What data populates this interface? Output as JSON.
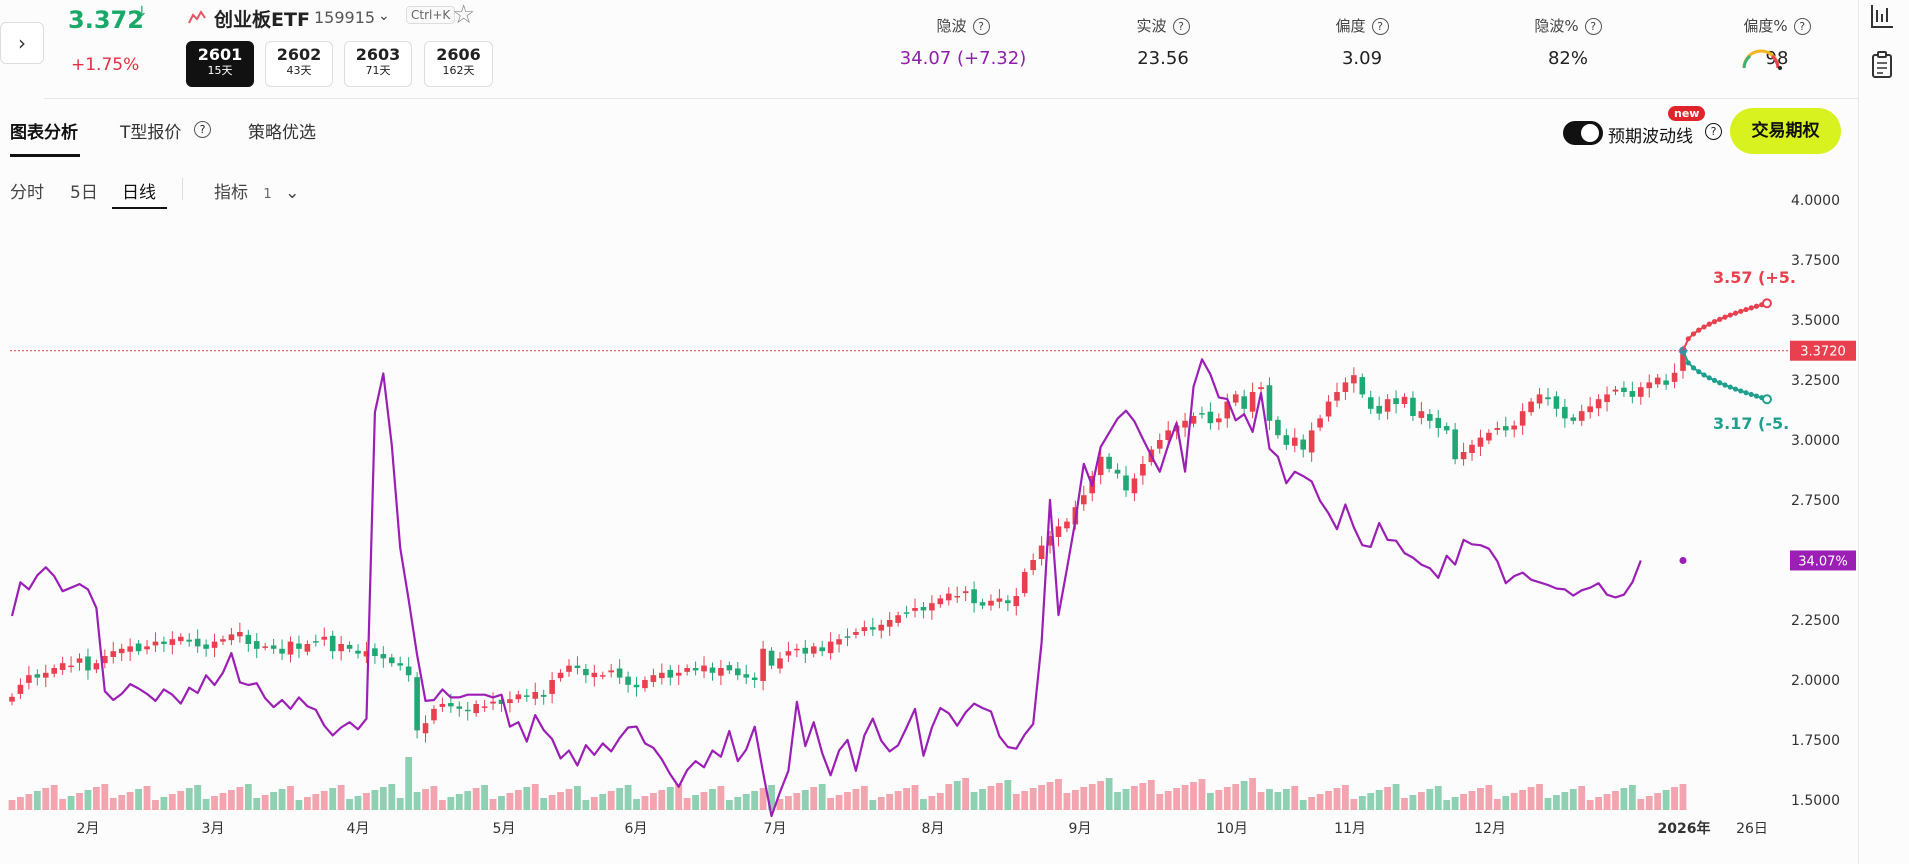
{
  "header": {
    "expand_icon": "chevron-right-icon",
    "price": "3.372",
    "price_arrow": "↓",
    "change": "+1.75%",
    "chart_icon": "chart-icon",
    "etf_name": "创业板ETF",
    "etf_code": "159915",
    "shortcut": "Ctrl+K",
    "favorite_icon": "star-icon",
    "expiries": [
      {
        "code": "2601",
        "days": "15天",
        "active": true
      },
      {
        "code": "2602",
        "days": "43天",
        "active": false
      },
      {
        "code": "2603",
        "days": "71天",
        "active": false
      },
      {
        "code": "2606",
        "days": "162天",
        "active": false
      }
    ],
    "stats": [
      {
        "label": "隐波",
        "value": "34.07 (+7.32)",
        "color": "#8e1fa8"
      },
      {
        "label": "实波",
        "value": "23.56",
        "color": "#222222"
      },
      {
        "label": "偏度",
        "value": "3.09",
        "color": "#222222"
      },
      {
        "label": "隐波%",
        "value": "82%",
        "color": "#222222"
      },
      {
        "label": "偏度%",
        "value": "98",
        "color": "#222222"
      }
    ]
  },
  "tabs": [
    "图表分析",
    "T型报价",
    "策略优选"
  ],
  "sub_tabs": [
    "分时",
    "5日",
    "日线"
  ],
  "indicator": {
    "label": "指标",
    "count": "1"
  },
  "toggle_label": "预期波动线",
  "new_badge": "new",
  "trade_button": "交易期权",
  "colors": {
    "up": "#e8404f",
    "down": "#1fa874",
    "iv_line": "#9b1fb5",
    "accent": "#d7f21e"
  },
  "chart_data": {
    "type": "candlestick",
    "x_ticks": [
      "2月",
      "3月",
      "4月",
      "5月",
      "6月",
      "7月",
      "8月",
      "9月",
      "10月",
      "11月",
      "12月",
      "2026年",
      "26日"
    ],
    "y_ticks": [
      "4.0000",
      "3.7500",
      "3.5000",
      "3.2500",
      "3.0000",
      "2.7500",
      "2.5000",
      "2.2500",
      "2.0000",
      "1.7500",
      "1.5000"
    ],
    "ylim": [
      1.5,
      4.0
    ],
    "last_price_label": "3.3720",
    "last_price": 3.372,
    "iv_label": "34.07%",
    "iv_last": 34.07,
    "projection_upper": {
      "label": "3.57 (+5.",
      "value": 3.57
    },
    "projection_lower": {
      "label": "3.17 (-5.",
      "value": 3.17
    },
    "price_series": [
      1.93,
      1.98,
      2.02,
      2.01,
      2.03,
      2.05,
      2.07,
      2.06,
      2.09,
      2.04,
      2.07,
      2.1,
      2.12,
      2.13,
      2.14,
      2.12,
      2.14,
      2.16,
      2.15,
      2.17,
      2.18,
      2.16,
      2.14,
      2.13,
      2.16,
      2.17,
      2.19,
      2.2,
      2.15,
      2.13,
      2.14,
      2.13,
      2.11,
      2.16,
      2.13,
      2.15,
      2.16,
      2.18,
      2.12,
      2.15,
      2.13,
      2.11,
      2.12,
      2.1,
      2.09,
      2.07,
      2.06,
      2.02,
      1.79,
      1.82,
      1.88,
      1.9,
      1.89,
      1.88,
      1.87,
      1.9,
      1.89,
      1.91,
      1.9,
      1.92,
      1.94,
      1.93,
      1.95,
      1.93,
      2.0,
      2.03,
      2.06,
      2.05,
      2.02,
      2.03,
      2.02,
      2.04,
      2.01,
      1.98,
      1.97,
      2.0,
      2.02,
      2.03,
      2.01,
      2.03,
      2.05,
      2.04,
      2.06,
      2.03,
      2.05,
      2.04,
      2.02,
      2.01,
      2.0,
      2.13,
      2.06,
      2.09,
      2.12,
      2.13,
      2.11,
      2.14,
      2.12,
      2.16,
      2.17,
      2.18,
      2.2,
      2.22,
      2.21,
      2.23,
      2.25,
      2.27,
      2.28,
      2.3,
      2.29,
      2.32,
      2.34,
      2.36,
      2.35,
      2.37,
      2.32,
      2.31,
      2.33,
      2.34,
      2.32,
      2.35,
      2.45,
      2.5,
      2.56,
      2.6,
      2.64,
      2.66,
      2.72,
      2.77,
      2.85,
      2.93,
      2.88,
      2.86,
      2.79,
      2.84,
      2.9,
      2.96,
      3.0,
      3.04,
      3.06,
      3.08,
      3.1,
      3.11,
      3.07,
      3.09,
      3.16,
      3.19,
      3.13,
      3.2,
      3.22,
      3.08,
      3.02,
      2.98,
      3.01,
      2.96,
      3.04,
      3.09,
      3.16,
      3.2,
      3.24,
      3.27,
      3.19,
      3.13,
      3.11,
      3.17,
      3.15,
      3.18,
      3.1,
      3.12,
      3.08,
      3.05,
      3.04,
      2.92,
      2.95,
      2.98,
      3.01,
      3.03,
      3.05,
      3.04,
      3.06,
      3.12,
      3.16,
      3.19,
      3.17,
      3.13,
      3.09,
      3.08,
      3.12,
      3.14,
      3.17,
      3.19,
      3.21,
      3.2,
      3.18,
      3.22,
      3.24,
      3.26,
      3.23,
      3.28,
      3.372
    ],
    "iv_series": [
      27.8,
      31.6,
      30.8,
      32.4,
      33.3,
      32.3,
      30.6,
      31.0,
      31.4,
      30.8,
      28.7,
      19.3,
      18.3,
      19.0,
      20.1,
      19.6,
      19.0,
      18.2,
      19.5,
      18.9,
      17.9,
      19.7,
      19.1,
      21.1,
      20.0,
      21.4,
      23.6,
      20.3,
      20.0,
      20.2,
      18.5,
      17.5,
      18.3,
      17.3,
      18.6,
      17.6,
      17.2,
      15.4,
      14.3,
      15.2,
      15.8,
      15.0,
      16.2,
      50.8,
      55.2,
      47.1,
      35.5,
      29.6,
      23.4,
      18.2,
      18.3,
      19.5,
      18.6,
      18.6,
      18.9,
      18.9,
      18.9,
      18.6,
      18.9,
      15.3,
      15.8,
      13.6,
      16.6,
      14.9,
      13.9,
      11.7,
      12.6,
      10.9,
      13.2,
      12.1,
      13.4,
      12.5,
      14.0,
      15.2,
      15.3,
      13.4,
      12.9,
      11.6,
      9.9,
      8.5,
      10.4,
      11.4,
      10.7,
      12.6,
      11.9,
      14.8,
      11.4,
      12.7,
      15.3,
      10.1,
      5.2,
      7.9,
      10.3,
      18.1,
      13.1,
      15.8,
      12.3,
      9.8,
      12.6,
      13.8,
      10.3,
      14.3,
      16.2,
      13.7,
      12.5,
      13.2,
      15.2,
      17.3,
      12.0,
      15.2,
      17.4,
      16.8,
      15.4,
      16.9,
      17.9,
      17.4,
      17.0,
      14.2,
      13.0,
      12.8,
      14.4,
      15.6,
      24.8,
      40.9,
      27.9,
      33.1,
      38.6,
      45.0,
      42.5,
      46.9,
      48.5,
      50.1,
      51.0,
      49.8,
      47.8,
      45.9,
      44.1,
      47.1,
      49.6,
      44.1,
      53.7,
      56.8,
      55.1,
      52.5,
      52.3,
      49.9,
      50.6,
      48.6,
      53.0,
      46.7,
      45.8,
      42.8,
      44.1,
      43.6,
      43.0,
      40.8,
      39.4,
      37.6,
      40.4,
      37.8,
      35.8,
      35.6,
      38.3,
      36.4,
      36.3,
      34.9,
      34.4,
      33.6,
      33.2,
      32.1,
      34.6,
      33.6,
      36.4,
      35.9,
      35.8,
      35.4,
      34.0,
      31.5,
      32.3,
      32.7,
      31.9,
      31.6,
      31.3,
      30.9,
      30.8,
      30.1,
      30.7,
      31.0,
      31.5,
      30.2,
      29.9,
      30.2,
      31.6,
      34.07
    ]
  },
  "sidebar": {
    "icons": [
      "chart-mode-icon",
      "clipboard-icon"
    ]
  }
}
